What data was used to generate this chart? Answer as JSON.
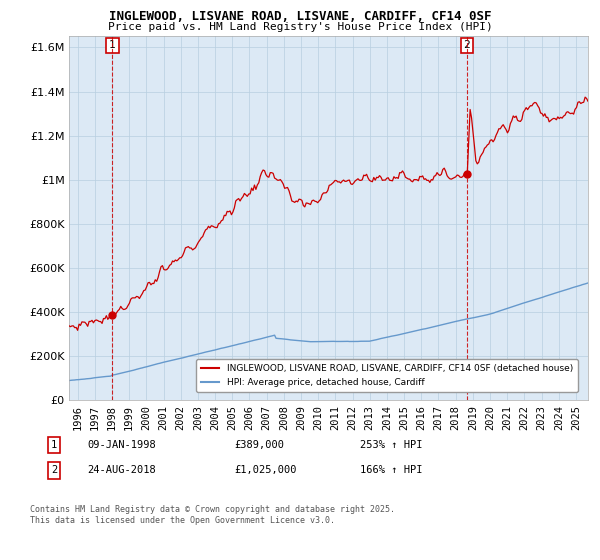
{
  "title": "INGLEWOOD, LISVANE ROAD, LISVANE, CARDIFF, CF14 0SF",
  "subtitle": "Price paid vs. HM Land Registry's House Price Index (HPI)",
  "legend_line1": "INGLEWOOD, LISVANE ROAD, LISVANE, CARDIFF, CF14 0SF (detached house)",
  "legend_line2": "HPI: Average price, detached house, Cardiff",
  "annotation1_label": "1",
  "annotation1_date": "09-JAN-1998",
  "annotation1_price": "£389,000",
  "annotation1_hpi": "253% ↑ HPI",
  "annotation2_label": "2",
  "annotation2_date": "24-AUG-2018",
  "annotation2_price": "£1,025,000",
  "annotation2_hpi": "166% ↑ HPI",
  "footnote": "Contains HM Land Registry data © Crown copyright and database right 2025.\nThis data is licensed under the Open Government Licence v3.0.",
  "red_color": "#cc0000",
  "blue_color": "#6699cc",
  "bg_color": "#dce9f5",
  "background_color": "#ffffff",
  "ylim": [
    0,
    1650000
  ],
  "yticks": [
    0,
    200000,
    400000,
    600000,
    800000,
    1000000,
    1200000,
    1400000,
    1600000
  ],
  "xlim_start": 1995.5,
  "xlim_end": 2025.7,
  "sale1_x": 1998.03,
  "sale1_y": 389000,
  "sale2_x": 2018.65,
  "sale2_y": 1025000
}
